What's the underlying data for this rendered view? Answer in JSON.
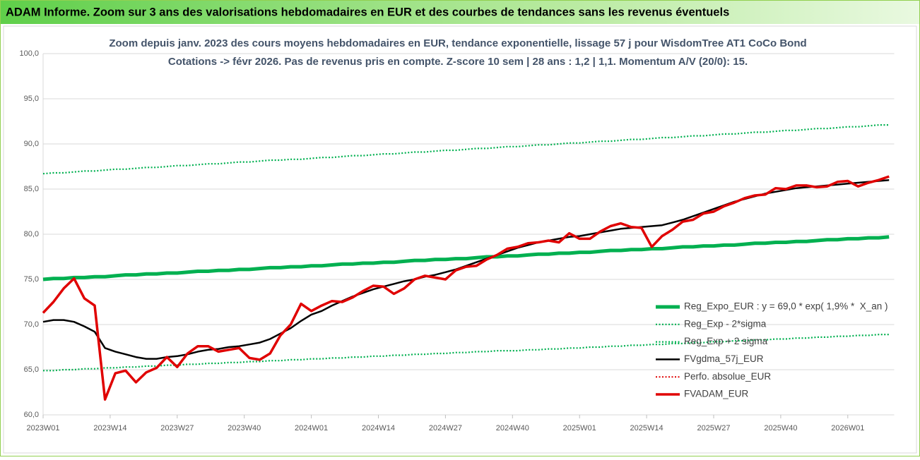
{
  "header": {
    "title": "ADAM Informe. Zoom sur 3 ans des valorisations hebdomadaires en EUR et des courbes de tendances sans les revenus éventuels"
  },
  "chart_data": {
    "type": "line",
    "title": "Zoom depuis janv. 2023 des cours moyens hebdomadaires en EUR, tendance exponentielle, lissage 57 j pour WisdomTree AT1 CoCo Bond",
    "subtitle": "Cotations -> févr 2026. Pas de revenus pris en compte. Z-score 10 sem | 28 ans : 1,2 | 1,1. Momentum A/V (20/0): 15.",
    "x": [
      0,
      2,
      4,
      6,
      8,
      10,
      12,
      14,
      16,
      18,
      20,
      22,
      24,
      26,
      28,
      30,
      32,
      34,
      36,
      38,
      40,
      42,
      44,
      46,
      48,
      50,
      52,
      54,
      56,
      58,
      60,
      62,
      64,
      66,
      68,
      70,
      72,
      74,
      76,
      78,
      80,
      82,
      84,
      86,
      88,
      90,
      92,
      94,
      96,
      98,
      100,
      102,
      104,
      106,
      108,
      110,
      112,
      114,
      116,
      118,
      120,
      122,
      124,
      126,
      128,
      130,
      132,
      134,
      136,
      138,
      140,
      142,
      144,
      146,
      148,
      150,
      152,
      154,
      156,
      158,
      160,
      162,
      164
    ],
    "xlim": [
      0,
      165
    ],
    "xticks": [
      {
        "value": 0,
        "label": "2023W01"
      },
      {
        "value": 13,
        "label": "2023W14"
      },
      {
        "value": 26,
        "label": "2023W27"
      },
      {
        "value": 39,
        "label": "2023W40"
      },
      {
        "value": 52,
        "label": "2024W01"
      },
      {
        "value": 65,
        "label": "2024W14"
      },
      {
        "value": 78,
        "label": "2024W27"
      },
      {
        "value": 91,
        "label": "2024W40"
      },
      {
        "value": 104,
        "label": "2025W01"
      },
      {
        "value": 117,
        "label": "2025W14"
      },
      {
        "value": 130,
        "label": "2025W27"
      },
      {
        "value": 143,
        "label": "2025W40"
      },
      {
        "value": 156,
        "label": "2026W01"
      }
    ],
    "ylim": [
      60,
      100
    ],
    "yticks": [
      {
        "value": 60,
        "label": "60,0"
      },
      {
        "value": 65,
        "label": "65,0"
      },
      {
        "value": 70,
        "label": "70,0"
      },
      {
        "value": 75,
        "label": "75,0"
      },
      {
        "value": 80,
        "label": "80,0"
      },
      {
        "value": 85,
        "label": "85,0"
      },
      {
        "value": 90,
        "label": "90,0"
      },
      {
        "value": 95,
        "label": "95,0"
      },
      {
        "value": 100,
        "label": "100,0"
      }
    ],
    "grid": true,
    "legend_position": "lower right",
    "series": [
      {
        "name": "Reg_Expo_EUR : y = 69,0 * exp( 1,9% *  X_an )",
        "color": "#00b050",
        "line_style": "solid",
        "values": [
          75.0,
          75.1,
          75.1,
          75.2,
          75.2,
          75.3,
          75.3,
          75.4,
          75.5,
          75.5,
          75.6,
          75.6,
          75.7,
          75.7,
          75.8,
          75.9,
          75.9,
          76.0,
          76.0,
          76.1,
          76.1,
          76.2,
          76.3,
          76.3,
          76.4,
          76.4,
          76.5,
          76.5,
          76.6,
          76.7,
          76.7,
          76.8,
          76.8,
          76.9,
          76.9,
          77.0,
          77.1,
          77.1,
          77.2,
          77.2,
          77.3,
          77.3,
          77.4,
          77.5,
          77.5,
          77.6,
          77.6,
          77.7,
          77.8,
          77.8,
          77.9,
          77.9,
          78.0,
          78.0,
          78.1,
          78.2,
          78.2,
          78.3,
          78.3,
          78.4,
          78.4,
          78.5,
          78.6,
          78.6,
          78.7,
          78.7,
          78.8,
          78.8,
          78.9,
          79.0,
          79.0,
          79.1,
          79.1,
          79.2,
          79.2,
          79.3,
          79.4,
          79.4,
          79.5,
          79.5,
          79.6,
          79.6,
          79.7
        ]
      },
      {
        "name": "Reg_Exp - 2*sigma",
        "color": "#00b050",
        "line_style": "dotted",
        "values": [
          64.9,
          64.9,
          65.0,
          65.0,
          65.1,
          65.1,
          65.2,
          65.2,
          65.3,
          65.3,
          65.4,
          65.4,
          65.5,
          65.5,
          65.6,
          65.6,
          65.7,
          65.7,
          65.8,
          65.8,
          65.9,
          65.9,
          66.0,
          66.0,
          66.1,
          66.1,
          66.2,
          66.2,
          66.3,
          66.3,
          66.4,
          66.4,
          66.5,
          66.5,
          66.6,
          66.6,
          66.7,
          66.7,
          66.8,
          66.8,
          66.9,
          66.9,
          67.0,
          67.0,
          67.1,
          67.1,
          67.1,
          67.2,
          67.2,
          67.3,
          67.3,
          67.4,
          67.4,
          67.5,
          67.5,
          67.6,
          67.6,
          67.7,
          67.7,
          67.8,
          67.8,
          67.9,
          67.9,
          68.0,
          68.0,
          68.1,
          68.1,
          68.2,
          68.2,
          68.3,
          68.3,
          68.4,
          68.4,
          68.5,
          68.5,
          68.6,
          68.6,
          68.7,
          68.7,
          68.8,
          68.8,
          68.9,
          68.9
        ]
      },
      {
        "name": "Reg_Exp + 2 sigma",
        "color": "#00b050",
        "line_style": "dotted",
        "values": [
          86.7,
          86.8,
          86.8,
          86.9,
          87.0,
          87.0,
          87.1,
          87.2,
          87.2,
          87.3,
          87.4,
          87.4,
          87.5,
          87.6,
          87.6,
          87.7,
          87.8,
          87.8,
          87.9,
          88.0,
          88.0,
          88.1,
          88.2,
          88.2,
          88.3,
          88.3,
          88.4,
          88.5,
          88.5,
          88.6,
          88.7,
          88.7,
          88.8,
          88.9,
          88.9,
          89.0,
          89.1,
          89.1,
          89.2,
          89.3,
          89.3,
          89.4,
          89.5,
          89.5,
          89.6,
          89.7,
          89.7,
          89.8,
          89.9,
          89.9,
          90.0,
          90.1,
          90.1,
          90.2,
          90.3,
          90.3,
          90.4,
          90.5,
          90.5,
          90.6,
          90.7,
          90.7,
          90.8,
          90.9,
          90.9,
          91.0,
          91.1,
          91.1,
          91.2,
          91.3,
          91.3,
          91.4,
          91.5,
          91.5,
          91.6,
          91.7,
          91.7,
          91.8,
          91.9,
          91.9,
          92.0,
          92.1,
          92.1
        ]
      },
      {
        "name": "FVgdma_57j_EUR",
        "color": "#000000",
        "line_style": "solid",
        "values": [
          70.3,
          70.5,
          70.5,
          70.3,
          69.8,
          69.2,
          67.4,
          67.0,
          66.7,
          66.4,
          66.2,
          66.2,
          66.4,
          66.5,
          66.7,
          67.0,
          67.2,
          67.3,
          67.5,
          67.6,
          67.8,
          68.0,
          68.4,
          69.0,
          69.6,
          70.4,
          71.1,
          71.5,
          72.1,
          72.6,
          73.1,
          73.5,
          73.9,
          74.2,
          74.5,
          74.8,
          75.0,
          75.3,
          75.5,
          75.8,
          76.1,
          76.5,
          76.9,
          77.3,
          77.7,
          78.1,
          78.5,
          78.8,
          79.1,
          79.3,
          79.5,
          79.7,
          79.8,
          80.0,
          80.2,
          80.4,
          80.6,
          80.7,
          80.8,
          80.9,
          81.0,
          81.3,
          81.6,
          82.0,
          82.4,
          82.8,
          83.2,
          83.6,
          83.9,
          84.2,
          84.5,
          84.7,
          84.9,
          85.1,
          85.2,
          85.3,
          85.4,
          85.5,
          85.6,
          85.7,
          85.8,
          85.9,
          86.0
        ]
      },
      {
        "name": "Perfo. absolue_EUR",
        "color": "#e00000",
        "line_style": "dotted",
        "values": [
          71.3,
          72.5,
          74.0,
          75.1,
          72.9,
          72.1,
          61.7,
          64.6,
          64.9,
          63.6,
          64.7,
          65.2,
          66.4,
          65.3,
          66.8,
          67.6,
          67.6,
          67.0,
          67.2,
          67.4,
          66.3,
          66.1,
          66.8,
          68.8,
          70.0,
          72.3,
          71.5,
          72.1,
          72.6,
          72.5,
          73.0,
          73.7,
          74.3,
          74.2,
          73.4,
          74.0,
          75.0,
          75.4,
          75.2,
          75.0,
          76.0,
          76.4,
          76.5,
          77.2,
          77.7,
          78.4,
          78.6,
          79.0,
          79.1,
          79.3,
          79.1,
          80.1,
          79.5,
          79.5,
          80.3,
          80.9,
          81.2,
          80.8,
          80.7,
          78.6,
          79.8,
          80.5,
          81.4,
          81.6,
          82.3,
          82.5,
          83.1,
          83.5,
          84.0,
          84.3,
          84.4,
          85.1,
          85.0,
          85.4,
          85.4,
          85.2,
          85.3,
          85.8,
          85.9,
          85.3,
          85.7,
          86.0,
          86.4
        ]
      },
      {
        "name": "FVADAM_EUR",
        "color": "#e00000",
        "line_style": "solid",
        "values": [
          71.3,
          72.5,
          74.0,
          75.1,
          72.9,
          72.1,
          61.7,
          64.6,
          64.9,
          63.6,
          64.7,
          65.2,
          66.4,
          65.3,
          66.8,
          67.6,
          67.6,
          67.0,
          67.2,
          67.4,
          66.3,
          66.1,
          66.8,
          68.8,
          70.0,
          72.3,
          71.5,
          72.1,
          72.6,
          72.5,
          73.0,
          73.7,
          74.3,
          74.2,
          73.4,
          74.0,
          75.0,
          75.4,
          75.2,
          75.0,
          76.0,
          76.4,
          76.5,
          77.2,
          77.7,
          78.4,
          78.6,
          79.0,
          79.1,
          79.3,
          79.1,
          80.1,
          79.5,
          79.5,
          80.3,
          80.9,
          81.2,
          80.8,
          80.7,
          78.6,
          79.8,
          80.5,
          81.4,
          81.6,
          82.3,
          82.5,
          83.1,
          83.5,
          84.0,
          84.3,
          84.4,
          85.1,
          85.0,
          85.4,
          85.4,
          85.2,
          85.3,
          85.8,
          85.9,
          85.3,
          85.7,
          86.0,
          86.4
        ]
      }
    ]
  }
}
